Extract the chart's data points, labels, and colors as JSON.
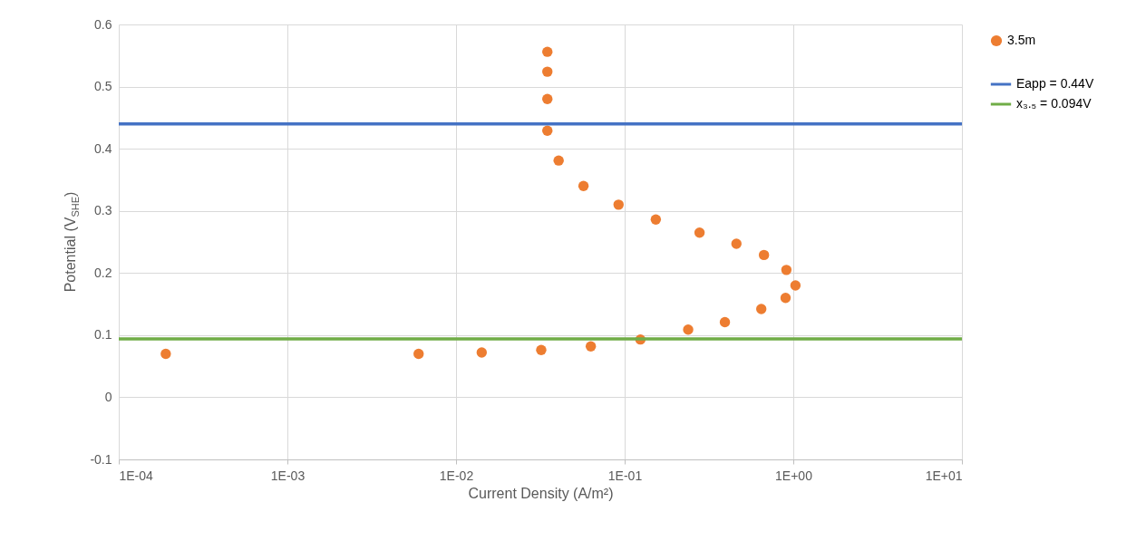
{
  "chart_data": {
    "type": "scatter",
    "xlabel": "Current Density (A/m²)",
    "ylabel": "Potential (V$_{SHE}$)",
    "series": [
      {
        "name": "3.5m",
        "type": "scatter",
        "color": "#ed7d31",
        "marker": "circle",
        "x": [
          0.00019,
          0.006,
          0.0142,
          0.032,
          0.063,
          0.124,
          0.238,
          0.393,
          0.646,
          0.9,
          1.03,
          0.91,
          0.67,
          0.46,
          0.278,
          0.153,
          0.092,
          0.057,
          0.0406,
          0.0348,
          0.0348,
          0.0348,
          0.0348
        ],
        "values": [
          0.07,
          0.07,
          0.072,
          0.076,
          0.082,
          0.093,
          0.109,
          0.121,
          0.142,
          0.16,
          0.18,
          0.205,
          0.229,
          0.247,
          0.265,
          0.286,
          0.31,
          0.34,
          0.381,
          0.429,
          0.48,
          0.524,
          0.556
        ]
      },
      {
        "name": "Eapp = 0.44V",
        "type": "line",
        "color": "#4472c4",
        "line_style": "solid",
        "x": [
          0.0001,
          10
        ],
        "values": [
          0.44,
          0.44
        ]
      },
      {
        "name": "x₃.₅ = 0.094V",
        "type": "line",
        "color": "#70ad47",
        "line_style": "solid",
        "x": [
          0.0001,
          10
        ],
        "values": [
          0.094,
          0.094
        ]
      }
    ],
    "log": "x",
    "xlim": [
      0.0001,
      10
    ],
    "xticks": [
      {
        "value": 0.0001,
        "label": "1E-04"
      },
      {
        "value": 0.001,
        "label": "1E-03"
      },
      {
        "value": 0.01,
        "label": "1E-02"
      },
      {
        "value": 0.1,
        "label": "1E-01"
      },
      {
        "value": 1,
        "label": "1E+00"
      },
      {
        "value": 10,
        "label": "1E+01"
      }
    ],
    "ylim": [
      -0.1,
      0.6
    ],
    "yticks": [
      {
        "value": -0.1,
        "label": "-0.1"
      },
      0,
      0.1,
      0.2,
      0.3,
      0.4,
      0.5,
      0.6
    ],
    "grid": true,
    "legend": "right"
  }
}
